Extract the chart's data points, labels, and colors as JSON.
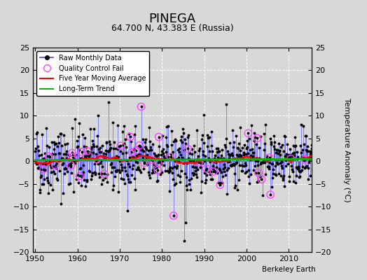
{
  "title": "PINEGA",
  "subtitle": "64.700 N, 43.383 E (Russia)",
  "ylabel_right": "Temperature Anomaly (°C)",
  "watermark": "Berkeley Earth",
  "year_start": 1950,
  "year_end": 2016,
  "ylim": [
    -20,
    25
  ],
  "yticks_left": [
    -20,
    -15,
    -10,
    -5,
    0,
    5,
    10,
    15,
    20,
    25
  ],
  "yticks_right": [
    -20,
    -15,
    -10,
    -5,
    0,
    5,
    10,
    15,
    20,
    25
  ],
  "xticks": [
    1950,
    1960,
    1970,
    1980,
    1990,
    2000,
    2010
  ],
  "raw_line_color": "#4444FF",
  "raw_dot_color": "#000000",
  "qc_color": "#FF44FF",
  "moving_avg_color": "#FF0000",
  "trend_color": "#00BB00",
  "plot_bg_color": "#D8D8D8",
  "fig_bg_color": "#D8D8D8",
  "grid_color": "#FFFFFF",
  "seed": 42
}
